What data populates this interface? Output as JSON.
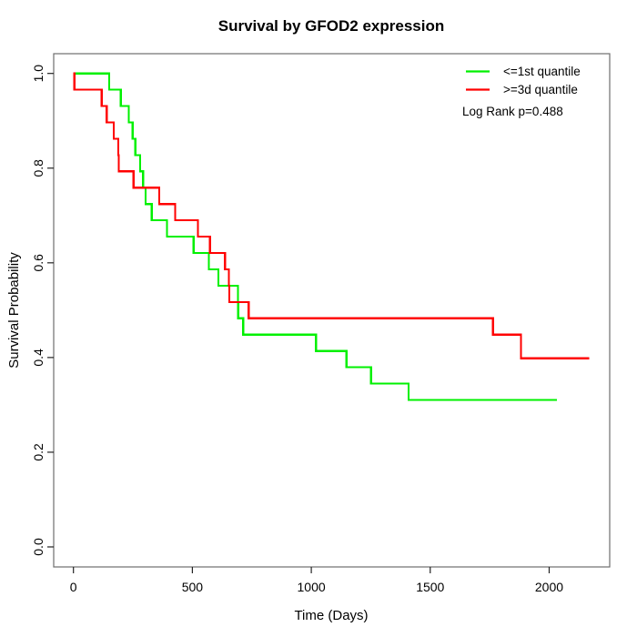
{
  "title": "Survival by GFOD2 expression",
  "annotation": "Log Rank p=0.488",
  "legend": {
    "items": [
      {
        "label": "<=1st quantile",
        "color": "#00f000"
      },
      {
        "label": ">=3d quantile",
        "color": "#ff0000"
      }
    ]
  },
  "chart_data": {
    "type": "line",
    "variant": "kaplan-meier-step",
    "title": "Survival by GFOD2 expression",
    "xlabel": "Time (Days)",
    "ylabel": "Survival Probability",
    "xlim": [
      -83,
      2254.5
    ],
    "ylim": [
      -0.0423,
      1.0417
    ],
    "grid": false,
    "legend_position": "top-right",
    "x_ticks": {
      "values": [
        0,
        500,
        1000,
        1500,
        2000
      ],
      "labels": [
        "0",
        "500",
        "1000",
        "1500",
        "2000"
      ]
    },
    "y_ticks": {
      "values": [
        0.0,
        0.2,
        0.4,
        0.6,
        0.8,
        1.0
      ],
      "labels": [
        "0.0",
        "0.2",
        "0.4",
        "0.6",
        "0.8",
        "1.0"
      ]
    },
    "series": [
      {
        "name": "<=1st quantile",
        "color": "#00f000",
        "start_time": 0,
        "start_survival": 1.0,
        "steps": [
          [
            150,
            0.9655
          ],
          [
            199,
            0.931
          ],
          [
            233,
            0.8966
          ],
          [
            249,
            0.8621
          ],
          [
            260,
            0.8276
          ],
          [
            280,
            0.7931
          ],
          [
            293,
            0.7586
          ],
          [
            303,
            0.7241
          ],
          [
            329,
            0.6897
          ],
          [
            393,
            0.6552
          ],
          [
            505,
            0.6207
          ],
          [
            569,
            0.5862
          ],
          [
            610,
            0.5517
          ],
          [
            692,
            0.5172
          ],
          [
            693,
            0.4828
          ],
          [
            714,
            0.4483
          ],
          [
            1020,
            0.4138
          ],
          [
            1148,
            0.3793
          ],
          [
            1251,
            0.3448
          ],
          [
            1409,
            0.3103
          ]
        ],
        "end_time": 2032,
        "end_survival": 0.3103
      },
      {
        "name": ">=3d quantile",
        "color": "#ff0000",
        "start_time": 0,
        "start_survival": 1.0,
        "steps": [
          [
            4,
            0.9655
          ],
          [
            119,
            0.931
          ],
          [
            140,
            0.8966
          ],
          [
            169,
            0.8621
          ],
          [
            189,
            0.8276
          ],
          [
            190,
            0.7931
          ],
          [
            253,
            0.7586
          ],
          [
            361,
            0.7241
          ],
          [
            428,
            0.6897
          ],
          [
            523,
            0.6552
          ],
          [
            574,
            0.6207
          ],
          [
            637,
            0.5862
          ],
          [
            654,
            0.5517
          ],
          [
            655,
            0.5172
          ],
          [
            737,
            0.4828
          ],
          [
            1764,
            0.4483
          ],
          [
            1882,
            0.3985
          ]
        ],
        "end_time": 2169,
        "end_survival": 0.3985
      }
    ],
    "annotation": "Log Rank p=0.488"
  }
}
